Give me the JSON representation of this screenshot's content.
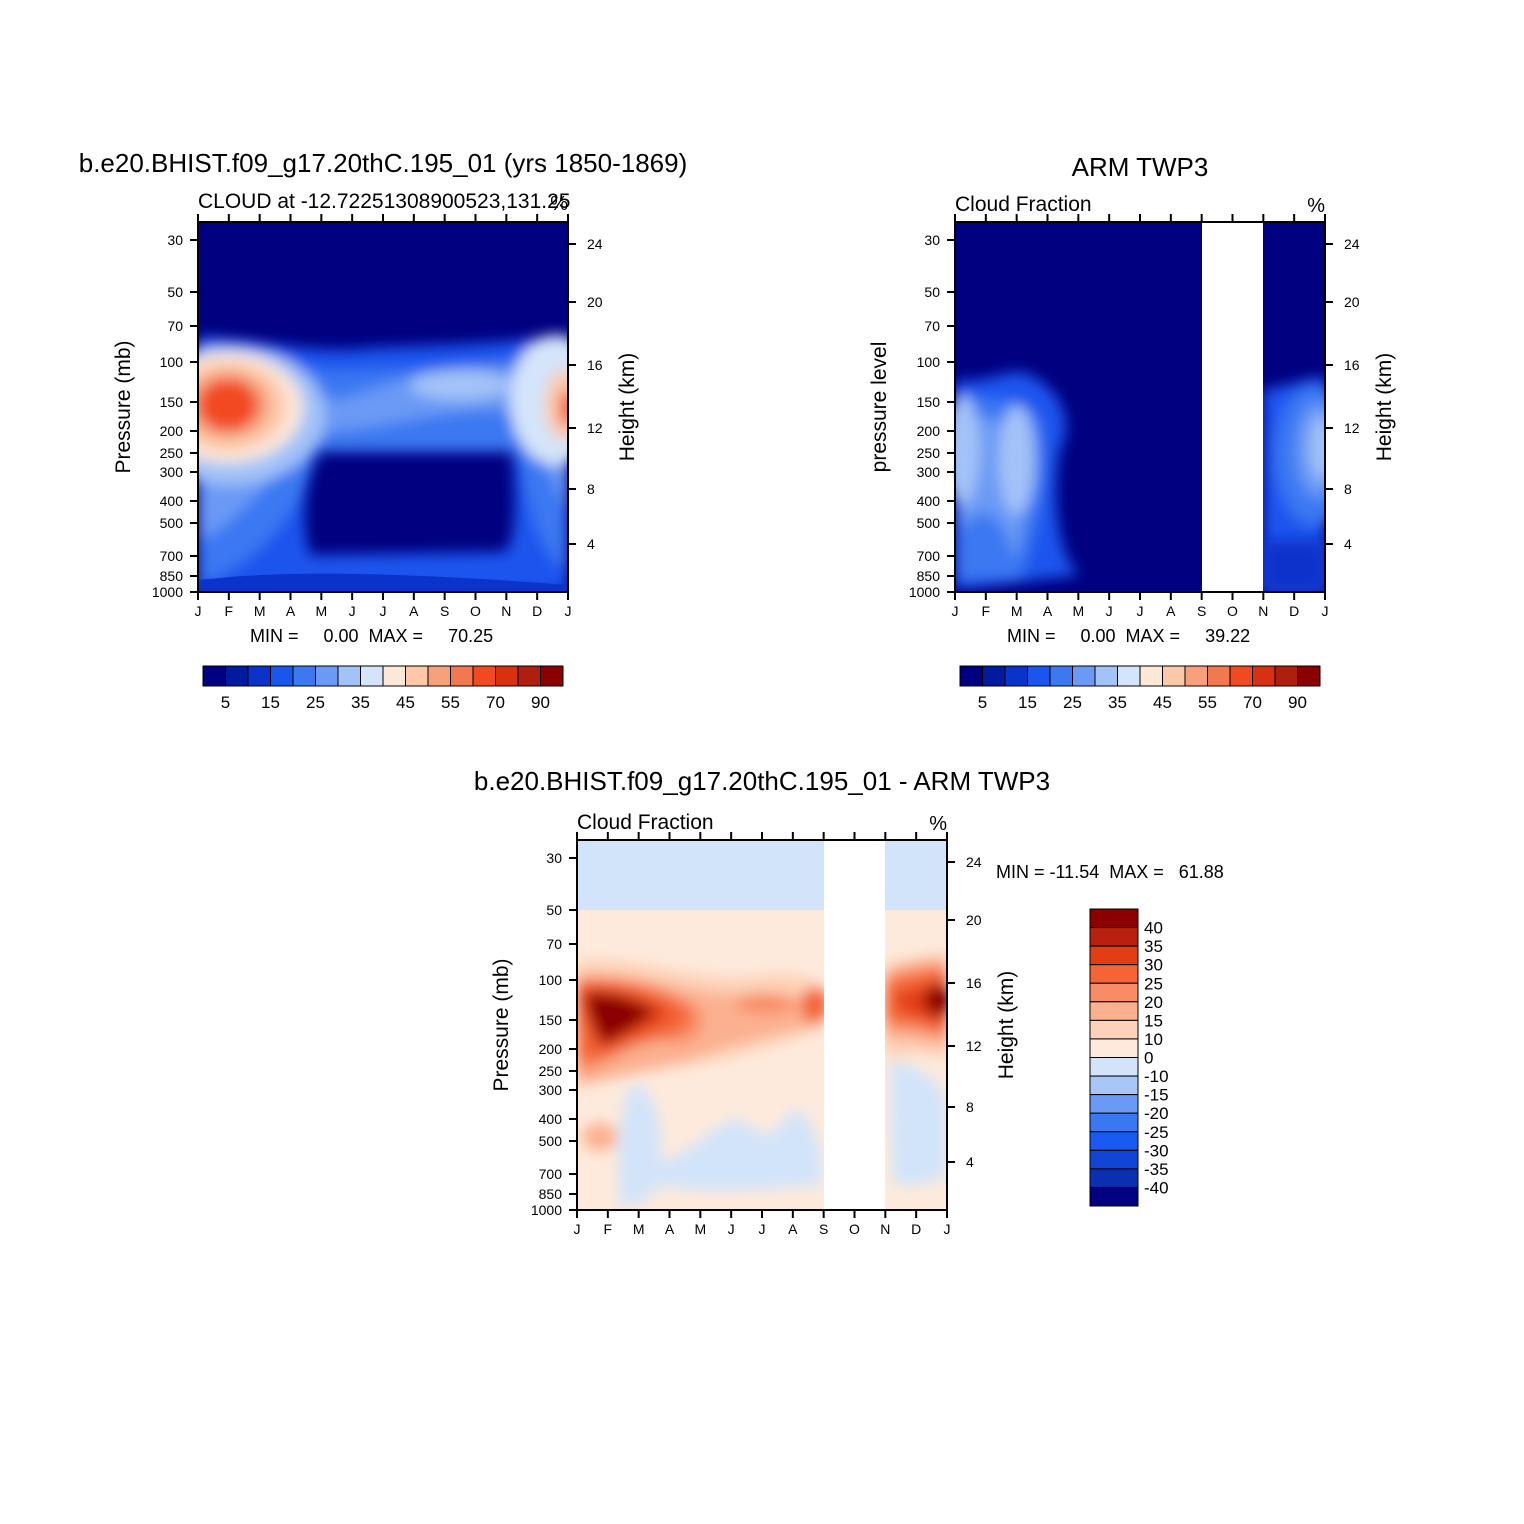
{
  "palettes": {
    "cloud": [
      "#000080",
      "#001aa0",
      "#0a33cc",
      "#1a55ee",
      "#3b78f2",
      "#6a9af5",
      "#a3c2f8",
      "#d4e4fa",
      "#fde8d8",
      "#fcc8a8",
      "#f7a07c",
      "#f27850",
      "#f24a20",
      "#d93010",
      "#b01e10",
      "#8b0000"
    ],
    "diff": [
      "#000080",
      "#0a2fb0",
      "#1045d8",
      "#1a5af2",
      "#3a78f2",
      "#6a9af5",
      "#a8c6f8",
      "#d2e4fa",
      "#feeadc",
      "#fdd2b8",
      "#fbb090",
      "#f88c64",
      "#f46434",
      "#e23e14",
      "#b82010",
      "#8b0000"
    ]
  },
  "months": [
    "J",
    "F",
    "M",
    "A",
    "M",
    "J",
    "J",
    "A",
    "S",
    "O",
    "N",
    "D",
    "J"
  ],
  "pressure_ticks": [
    "30",
    "50",
    "70",
    "100",
    "150",
    "200",
    "250",
    "300",
    "400",
    "500",
    "700",
    "850",
    "1000"
  ],
  "height_ticks": [
    "24",
    "20",
    "16",
    "12",
    "8",
    "4"
  ],
  "chart_data": [
    {
      "id": "model",
      "type": "heatmap",
      "title": "b.e20.BHIST.f09_g17.20thC.195_01 (yrs 1850-1869)",
      "subtitle": "CLOUD at -12.72251308900523,131.25",
      "units_label": "%",
      "ylabel": "Pressure (mb)",
      "y2label": "Height (km)",
      "stats": "MIN =     0.00  MAX =     70.25",
      "min": 0.0,
      "max": 70.25,
      "colorbar_labels": [
        "5",
        "15",
        "25",
        "35",
        "45",
        "55",
        "70",
        "90"
      ]
    },
    {
      "id": "obs",
      "type": "heatmap",
      "title": "ARM TWP3",
      "subtitle": "Cloud Fraction",
      "units_label": "%",
      "ylabel": "pressure level",
      "y2label": "Height (km)",
      "stats": "MIN =     0.00  MAX =     39.22",
      "min": 0.0,
      "max": 39.22,
      "missing_months": [
        "S",
        "O",
        "N"
      ],
      "colorbar_labels": [
        "5",
        "15",
        "25",
        "35",
        "45",
        "55",
        "70",
        "90"
      ]
    },
    {
      "id": "diff",
      "type": "heatmap",
      "title": "b.e20.BHIST.f09_g17.20thC.195_01 - ARM TWP3",
      "subtitle": "Cloud Fraction",
      "units_label": "%",
      "ylabel": "Pressure (mb)",
      "y2label": "Height (km)",
      "stats": "MIN = -11.54  MAX =   61.88",
      "min": -11.54,
      "max": 61.88,
      "missing_months": [
        "S",
        "O",
        "N"
      ],
      "colorbar_labels": [
        "40",
        "35",
        "30",
        "25",
        "20",
        "15",
        "10",
        "0",
        "-10",
        "-15",
        "-20",
        "-25",
        "-30",
        "-35",
        "-40"
      ]
    }
  ]
}
